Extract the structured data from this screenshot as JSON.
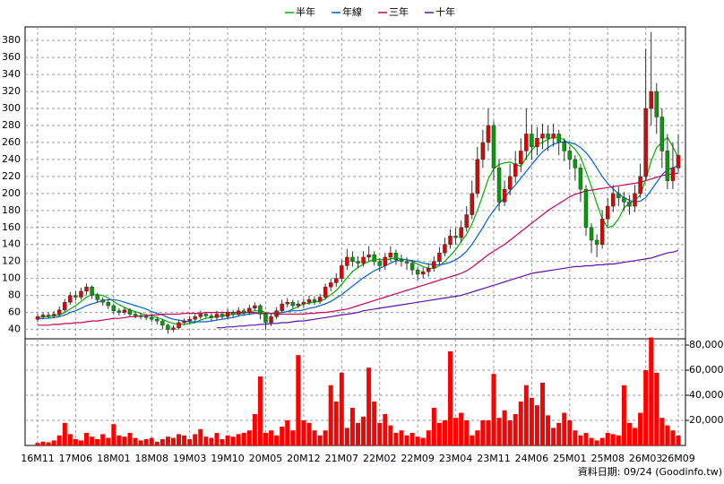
{
  "chart_data": [
    {
      "type": "candlestick",
      "categories": [
        "16M11",
        null,
        null,
        null,
        null,
        null,
        null,
        "17M06",
        null,
        null,
        null,
        null,
        null,
        null,
        "18M01",
        null,
        null,
        null,
        null,
        null,
        null,
        "18M08",
        null,
        null,
        null,
        null,
        null,
        null,
        "19M03",
        null,
        null,
        null,
        null,
        null,
        null,
        "19M10",
        null,
        null,
        null,
        null,
        null,
        null,
        "20M05",
        null,
        null,
        null,
        null,
        null,
        null,
        "20M12",
        null,
        null,
        null,
        null,
        null,
        null,
        "21M07",
        null,
        null,
        null,
        null,
        null,
        null,
        "22M02",
        null,
        null,
        null,
        null,
        null,
        null,
        "22M09",
        null,
        null,
        null,
        null,
        null,
        null,
        "23M04",
        null,
        null,
        null,
        null,
        null,
        null,
        "23M11",
        null,
        null,
        null,
        null,
        null,
        null,
        "24M06",
        null,
        null,
        null,
        null,
        null,
        null,
        "25M01",
        null,
        null,
        null,
        null,
        null,
        null,
        "25M08",
        null,
        null,
        null,
        null,
        null,
        null,
        "26M03",
        null,
        null,
        null,
        null,
        null,
        "26M09"
      ],
      "open": [
        52,
        55,
        57,
        56,
        58,
        63,
        72,
        80,
        78,
        85,
        90,
        80,
        75,
        72,
        68,
        62,
        60,
        63,
        58,
        56,
        55,
        54,
        52,
        50,
        45,
        40,
        42,
        48,
        50,
        52,
        55,
        58,
        56,
        54,
        58,
        55,
        60,
        58,
        62,
        60,
        65,
        68,
        58,
        48,
        55,
        62,
        70,
        72,
        68,
        70,
        72,
        75,
        73,
        78,
        90,
        95,
        100,
        115,
        125,
        120,
        118,
        125,
        128,
        120,
        115,
        125,
        130,
        122,
        120,
        118,
        110,
        105,
        108,
        112,
        120,
        130,
        140,
        150,
        148,
        160,
        175,
        200,
        240,
        260,
        280,
        230,
        190,
        205,
        220,
        235,
        250,
        270,
        255,
        265,
        270,
        265,
        270,
        260,
        250,
        240,
        230,
        205,
        160,
        145,
        140,
        170,
        185,
        200,
        195,
        190,
        185,
        200,
        220,
        300,
        320,
        290,
        250,
        215,
        230
      ],
      "high": [
        58,
        60,
        60,
        62,
        67,
        76,
        84,
        85,
        89,
        94,
        92,
        83,
        78,
        75,
        70,
        65,
        66,
        65,
        61,
        59,
        58,
        57,
        55,
        52,
        47,
        45,
        51,
        53,
        56,
        58,
        62,
        61,
        59,
        62,
        61,
        64,
        63,
        66,
        65,
        69,
        72,
        70,
        60,
        59,
        66,
        75,
        77,
        75,
        74,
        76,
        80,
        79,
        82,
        94,
        100,
        106,
        122,
        135,
        132,
        126,
        132,
        138,
        132,
        124,
        130,
        138,
        134,
        128,
        125,
        122,
        114,
        113,
        118,
        126,
        137,
        148,
        158,
        160,
        168,
        185,
        215,
        255,
        275,
        300,
        285,
        240,
        215,
        235,
        250,
        265,
        300,
        280,
        278,
        282,
        280,
        282,
        275,
        265,
        255,
        245,
        235,
        210,
        165,
        152,
        180,
        195,
        210,
        208,
        202,
        198,
        210,
        235,
        370,
        390,
        330,
        300,
        270,
        260,
        270
      ],
      "low": [
        49,
        52,
        53,
        53,
        55,
        60,
        69,
        74,
        75,
        81,
        76,
        71,
        68,
        64,
        58,
        56,
        57,
        55,
        53,
        52,
        51,
        49,
        46,
        40,
        35,
        37,
        40,
        45,
        47,
        49,
        52,
        53,
        50,
        51,
        52,
        52,
        54,
        55,
        56,
        57,
        62,
        52,
        40,
        44,
        52,
        60,
        66,
        64,
        65,
        66,
        69,
        69,
        70,
        75,
        85,
        90,
        96,
        110,
        114,
        112,
        114,
        120,
        115,
        108,
        110,
        120,
        116,
        114,
        110,
        104,
        98,
        100,
        102,
        108,
        116,
        126,
        135,
        140,
        142,
        155,
        170,
        195,
        230,
        250,
        215,
        180,
        185,
        198,
        212,
        225,
        240,
        240,
        245,
        252,
        250,
        255,
        245,
        238,
        228,
        215,
        190,
        150,
        130,
        125,
        135,
        162,
        178,
        185,
        180,
        175,
        178,
        195,
        215,
        280,
        270,
        230,
        205,
        205,
        225
      ],
      "close": [
        55,
        57,
        56,
        58,
        63,
        72,
        80,
        78,
        85,
        90,
        80,
        75,
        72,
        68,
        62,
        60,
        63,
        58,
        56,
        55,
        54,
        52,
        50,
        45,
        40,
        42,
        48,
        50,
        52,
        55,
        58,
        56,
        54,
        58,
        55,
        60,
        58,
        62,
        60,
        65,
        68,
        58,
        48,
        55,
        62,
        70,
        72,
        68,
        70,
        72,
        75,
        73,
        78,
        90,
        95,
        100,
        115,
        125,
        120,
        118,
        125,
        128,
        120,
        115,
        125,
        130,
        122,
        120,
        118,
        110,
        105,
        108,
        112,
        120,
        130,
        140,
        150,
        148,
        160,
        175,
        200,
        240,
        260,
        280,
        230,
        190,
        205,
        220,
        235,
        250,
        270,
        255,
        265,
        270,
        265,
        270,
        260,
        250,
        240,
        230,
        205,
        160,
        145,
        140,
        170,
        185,
        200,
        195,
        190,
        185,
        200,
        220,
        300,
        320,
        290,
        250,
        215,
        230,
        245
      ],
      "up_color": "#e60000",
      "down_color": "#00a000",
      "series": [
        {
          "name": "半年",
          "color": "#00b000",
          "values": [
            54,
            55,
            55,
            56,
            57,
            60,
            64,
            68,
            73,
            78,
            81,
            81,
            80,
            77,
            73,
            69,
            66,
            63,
            61,
            59,
            57,
            56,
            54,
            52,
            49,
            47,
            46,
            46,
            47,
            48,
            51,
            53,
            54,
            55,
            56,
            57,
            58,
            58,
            59,
            61,
            62,
            62,
            60,
            59,
            59,
            60,
            61,
            64,
            67,
            70,
            71,
            72,
            73,
            76,
            81,
            86,
            93,
            101,
            108,
            113,
            117,
            120,
            123,
            122,
            122,
            123,
            124,
            123,
            122,
            120,
            117,
            114,
            112,
            112,
            115,
            120,
            127,
            134,
            143,
            152,
            164,
            180,
            198,
            217,
            229,
            234,
            236,
            237,
            234,
            232,
            242,
            251,
            258,
            260,
            264,
            266,
            266,
            263,
            258,
            252,
            243,
            226,
            208,
            188,
            170,
            160,
            162,
            170,
            183,
            189,
            192,
            198,
            216,
            238,
            254,
            260,
            266,
            255,
            242
          ]
        },
        {
          "name": "年線",
          "color": "#0060e0",
          "values": [
            52,
            53,
            53,
            54,
            55,
            57,
            60,
            62,
            65,
            68,
            70,
            72,
            74,
            75,
            75,
            74,
            72,
            70,
            68,
            66,
            64,
            61,
            59,
            57,
            54,
            52,
            51,
            50,
            49,
            49,
            49,
            49,
            50,
            51,
            52,
            53,
            54,
            56,
            57,
            58,
            59,
            59,
            59,
            59,
            59,
            60,
            61,
            62,
            62,
            63,
            65,
            66,
            68,
            70,
            73,
            77,
            81,
            86,
            91,
            96,
            101,
            105,
            109,
            112,
            115,
            118,
            121,
            122,
            122,
            121,
            120,
            118,
            117,
            116,
            116,
            117,
            119,
            122,
            126,
            132,
            140,
            150,
            160,
            171,
            180,
            188,
            195,
            203,
            210,
            218,
            226,
            234,
            242,
            249,
            254,
            258,
            260,
            261,
            260,
            258,
            254,
            248,
            240,
            230,
            220,
            212,
            205,
            200,
            195,
            192,
            190,
            191,
            195,
            204,
            213,
            222,
            228,
            230,
            233
          ]
        },
        {
          "name": "三年",
          "color": "#d0005a",
          "values": [
            45,
            45,
            45,
            46,
            46,
            47,
            47,
            48,
            48,
            49,
            50,
            50,
            51,
            52,
            53,
            53,
            54,
            55,
            55,
            56,
            56,
            57,
            57,
            58,
            58,
            58,
            58,
            59,
            59,
            59,
            59,
            60,
            60,
            60,
            60,
            60,
            60,
            60,
            60,
            60,
            60,
            59,
            59,
            59,
            58,
            58,
            58,
            58,
            58,
            58,
            59,
            59,
            60,
            60,
            61,
            62,
            63,
            64,
            66,
            68,
            70,
            72,
            74,
            76,
            78,
            80,
            82,
            84,
            86,
            88,
            90,
            92,
            94,
            96,
            98,
            100,
            102,
            104,
            106,
            109,
            113,
            118,
            123,
            128,
            132,
            136,
            140,
            145,
            150,
            155,
            160,
            165,
            170,
            175,
            180,
            184,
            188,
            192,
            196,
            199,
            201,
            203,
            204,
            205,
            206,
            207,
            208,
            209,
            210,
            211,
            212,
            213,
            215,
            217,
            219,
            221,
            222,
            223,
            224
          ]
        },
        {
          "name": "十年",
          "color": "#6010b0",
          "values": [
            null,
            null,
            null,
            null,
            null,
            null,
            null,
            null,
            null,
            null,
            null,
            null,
            null,
            null,
            null,
            null,
            null,
            null,
            null,
            null,
            null,
            null,
            null,
            null,
            null,
            null,
            null,
            null,
            null,
            null,
            null,
            null,
            null,
            42,
            42,
            43,
            43,
            44,
            44,
            45,
            45,
            46,
            46,
            47,
            47,
            48,
            48,
            49,
            50,
            50,
            51,
            52,
            53,
            54,
            55,
            56,
            57,
            58,
            59,
            60,
            62,
            63,
            64,
            65,
            66,
            67,
            68,
            69,
            70,
            71,
            72,
            73,
            74,
            75,
            76,
            77,
            78,
            79,
            80,
            82,
            84,
            86,
            88,
            90,
            92,
            94,
            96,
            98,
            100,
            102,
            104,
            106,
            107,
            108,
            109,
            110,
            111,
            112,
            113,
            114,
            114,
            115,
            115,
            116,
            116,
            117,
            117,
            118,
            119,
            120,
            121,
            122,
            123,
            124,
            126,
            128,
            130,
            131,
            133
          ]
        }
      ],
      "ylim": [
        29,
        396
      ],
      "yticks": [
        40,
        60,
        80,
        100,
        120,
        140,
        160,
        180,
        200,
        220,
        240,
        260,
        280,
        300,
        320,
        340,
        360,
        380
      ],
      "grid": true,
      "legend": "top"
    },
    {
      "type": "bar",
      "color": "#ff0000",
      "values": [
        2000,
        3000,
        2500,
        4000,
        8000,
        18000,
        9000,
        5000,
        4000,
        10000,
        7000,
        5000,
        9000,
        6000,
        17000,
        8000,
        7000,
        10000,
        6000,
        4000,
        5000,
        6000,
        3000,
        5000,
        7000,
        6000,
        9000,
        8000,
        5000,
        9000,
        13000,
        7000,
        6000,
        10000,
        5000,
        8000,
        7000,
        9000,
        10000,
        12000,
        25000,
        55000,
        10000,
        12000,
        8000,
        15000,
        20000,
        12000,
        72000,
        20000,
        18000,
        12000,
        8000,
        12000,
        48000,
        35000,
        58000,
        14000,
        30000,
        18000,
        23000,
        62000,
        35000,
        18000,
        25000,
        16000,
        10000,
        12000,
        8000,
        10000,
        7000,
        6000,
        12000,
        30000,
        18000,
        20000,
        75000,
        22000,
        26000,
        20000,
        8000,
        12000,
        20000,
        20000,
        57000,
        22000,
        28000,
        20000,
        25000,
        35000,
        48000,
        38000,
        32000,
        50000,
        24000,
        14000,
        18000,
        26000,
        20000,
        12000,
        8000,
        10000,
        6000,
        4000,
        6000,
        10000,
        9000,
        8000,
        48000,
        18000,
        14000,
        26000,
        60000,
        86000,
        58000,
        22000,
        16000,
        12000,
        8000
      ],
      "ylim": [
        0,
        85000
      ],
      "yticks": [
        {
          "value": 20000,
          "label": "20,000"
        },
        {
          "value": 40000,
          "label": "40,000"
        },
        {
          "value": 60000,
          "label": "60,000"
        },
        {
          "value": 80000,
          "label": "80,000"
        }
      ],
      "grid": true,
      "annotation": "資料日期: 09/24  (Goodinfo.tw)"
    }
  ]
}
